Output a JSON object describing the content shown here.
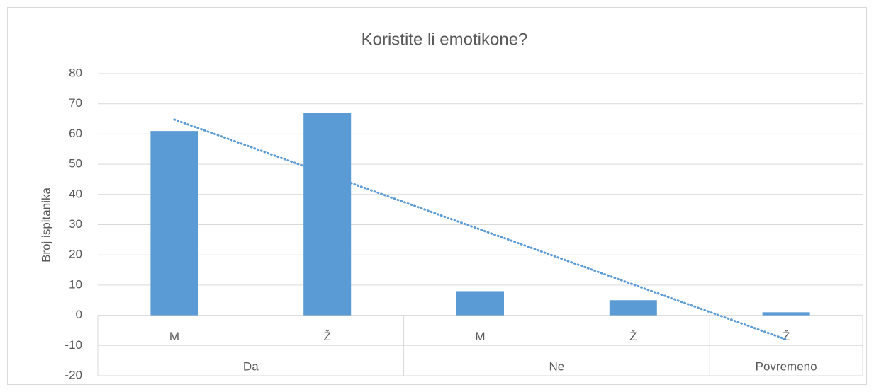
{
  "chart_data": {
    "type": "bar",
    "title": "Koristite li emotikone?",
    "y_label": "Broj ispitanika",
    "groups": [
      {
        "name": "Da",
        "categories": [
          "M",
          "Ž"
        ]
      },
      {
        "name": "Ne",
        "categories": [
          "M",
          "Ž"
        ]
      },
      {
        "name": "Povremeno",
        "categories": [
          "Ž"
        ]
      }
    ],
    "values": [
      61,
      67,
      8,
      5,
      1
    ],
    "color": "#5b9bd5",
    "trendline": "linear",
    "trendline_color": "#5b9bd5",
    "ylim": [
      -20,
      80
    ],
    "yticks": [
      -20,
      -10,
      0,
      10,
      20,
      30,
      40,
      50,
      60,
      70,
      80
    ],
    "grid": true
  }
}
